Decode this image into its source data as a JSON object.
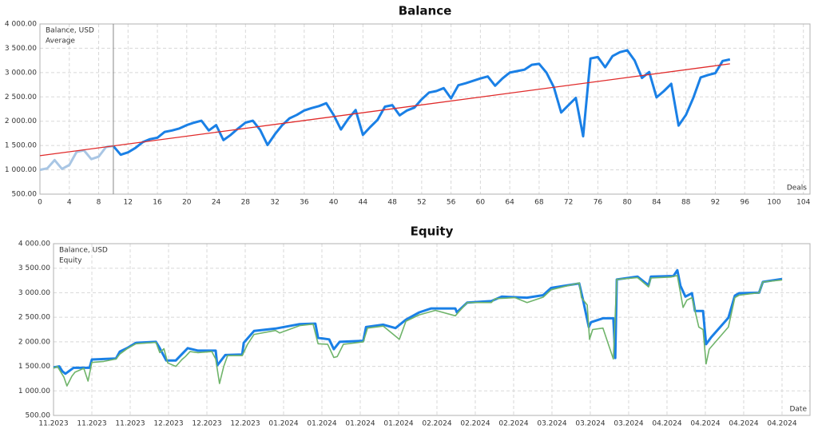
{
  "chart_data": [
    {
      "type": "line",
      "title": "Balance",
      "xlabel": "Deals",
      "xlim": [
        0,
        104.9
      ],
      "xticks": [
        0,
        4,
        8,
        12,
        16,
        20,
        24,
        28,
        32,
        36,
        40,
        44,
        48,
        52,
        56,
        60,
        64,
        68,
        72,
        76,
        80,
        84,
        88,
        92,
        96,
        100,
        104
      ],
      "ylim": [
        500,
        4000
      ],
      "yticks": [
        {
          "value": 500,
          "label": "500.00"
        },
        {
          "value": 1000,
          "label": "1 000.00"
        },
        {
          "value": 1500,
          "label": "1 500.00"
        },
        {
          "value": 2000,
          "label": "2 000.00"
        },
        {
          "value": 2500,
          "label": "2 500.00"
        },
        {
          "value": 3000,
          "label": "3 000.00"
        },
        {
          "value": 3500,
          "label": "3 500.00"
        },
        {
          "value": 4000,
          "label": "4 000.00"
        }
      ],
      "grid": true,
      "legend": "upper left",
      "cursor_x": 10,
      "before_cursor_color": "#a9c6e4",
      "series": [
        {
          "name": "Balance, USD",
          "color": "#1a80e6",
          "x": [
            0,
            1,
            2,
            3,
            4,
            5,
            6,
            7,
            8,
            9,
            10,
            11,
            12,
            13,
            14,
            15,
            16,
            17,
            18,
            19,
            20,
            21,
            22,
            23,
            24,
            25,
            26,
            27,
            28,
            29,
            30,
            31,
            32,
            33,
            34,
            35,
            36,
            37,
            38,
            39,
            40,
            41,
            42,
            43,
            44,
            45,
            46,
            47,
            48,
            49,
            50,
            51,
            52,
            53,
            54,
            55,
            56,
            57,
            58,
            59,
            60,
            61,
            62,
            63,
            64,
            65,
            66,
            67,
            68,
            69,
            70,
            71,
            72,
            73,
            74,
            75,
            76,
            77,
            78,
            79,
            80,
            81,
            82,
            83,
            84,
            85,
            86,
            87,
            88,
            89,
            90,
            91,
            92,
            93,
            94
          ],
          "values": [
            1000,
            1030,
            1200,
            1020,
            1100,
            1370,
            1400,
            1220,
            1270,
            1470,
            1490,
            1310,
            1360,
            1450,
            1570,
            1630,
            1660,
            1780,
            1810,
            1850,
            1920,
            1970,
            2010,
            1810,
            1920,
            1610,
            1720,
            1850,
            1970,
            2010,
            1820,
            1510,
            1730,
            1920,
            2060,
            2130,
            2220,
            2270,
            2310,
            2370,
            2130,
            1830,
            2050,
            2230,
            1720,
            1880,
            2030,
            2300,
            2330,
            2120,
            2220,
            2280,
            2450,
            2590,
            2620,
            2680,
            2470,
            2740,
            2780,
            2830,
            2880,
            2920,
            2730,
            2880,
            3000,
            3030,
            3060,
            3160,
            3180,
            3000,
            2700,
            2180,
            2330,
            2480,
            1690,
            3290,
            3320,
            3110,
            3340,
            3420,
            3460,
            3250,
            2890,
            3010,
            2490,
            2620,
            2770,
            1910,
            2130,
            2480,
            2900,
            2950,
            2990,
            3240,
            3270
          ],
          "width": 3
        },
        {
          "name": "Average",
          "color": "#e02a2a",
          "x": [
            0,
            94
          ],
          "values": [
            1290,
            3180
          ],
          "width": 1.3
        }
      ]
    },
    {
      "type": "line",
      "title": "Equity",
      "xlabel": "Date",
      "xlim": [
        0,
        19.73
      ],
      "xticks": [
        {
          "value": 0,
          "label": "11.2023"
        },
        {
          "value": 1,
          "label": "11.2023"
        },
        {
          "value": 2,
          "label": "11.2023"
        },
        {
          "value": 3,
          "label": "12.2023"
        },
        {
          "value": 4,
          "label": "12.2023"
        },
        {
          "value": 5,
          "label": "12.2023"
        },
        {
          "value": 6,
          "label": "01.2024"
        },
        {
          "value": 7,
          "label": "01.2024"
        },
        {
          "value": 8,
          "label": "01.2024"
        },
        {
          "value": 9,
          "label": "01.2024"
        },
        {
          "value": 10,
          "label": "02.2024"
        },
        {
          "value": 11,
          "label": "02.2024"
        },
        {
          "value": 12,
          "label": "02.2024"
        },
        {
          "value": 13,
          "label": "03.2024"
        },
        {
          "value": 14,
          "label": "03.2024"
        },
        {
          "value": 15,
          "label": "03.2024"
        },
        {
          "value": 16,
          "label": "04.2024"
        },
        {
          "value": 17,
          "label": "04.2024"
        },
        {
          "value": 18,
          "label": "04.2024"
        },
        {
          "value": 19,
          "label": "04.2024"
        }
      ],
      "ylim": [
        500,
        4000
      ],
      "yticks": [
        {
          "value": 500,
          "label": "500.00"
        },
        {
          "value": 1000,
          "label": "1 000.00"
        },
        {
          "value": 1500,
          "label": "1 500.00"
        },
        {
          "value": 2000,
          "label": "2 000.00"
        },
        {
          "value": 2500,
          "label": "2 500.00"
        },
        {
          "value": 3000,
          "label": "3 000.00"
        },
        {
          "value": 3500,
          "label": "3 500.00"
        },
        {
          "value": 4000,
          "label": "4 000.00"
        }
      ],
      "grid": true,
      "legend": "upper left",
      "series": [
        {
          "name": "Balance, USD",
          "color": "#1a80e6",
          "width": 3,
          "x": [
            0,
            0.15,
            0.23,
            0.31,
            0.52,
            0.94,
            1,
            1.31,
            1.63,
            1.73,
            1.94,
            2.15,
            2.67,
            2.77,
            2.94,
            3.19,
            3.35,
            3.5,
            3.77,
            4.23,
            4.27,
            4.48,
            4.92,
            4.96,
            5.23,
            5.79,
            6.42,
            6.83,
            6.9,
            7.19,
            7.31,
            7.46,
            8.08,
            8.15,
            8.6,
            8.92,
            9.19,
            9.54,
            9.85,
            10.48,
            10.52,
            10.79,
            11.42,
            11.69,
            12.35,
            12.77,
            12.98,
            13.71,
            13.81,
            13.96,
            14.02,
            14.33,
            14.6,
            14.65,
            14.69,
            15.23,
            15.52,
            15.58,
            16.17,
            16.27,
            16.35,
            16.48,
            16.65,
            16.73,
            16.94,
            17.02,
            17.15,
            17.6,
            17.77,
            17.88,
            18.4,
            18.5,
            19
          ],
          "values": [
            1480,
            1500,
            1400,
            1350,
            1470,
            1470,
            1640,
            1650,
            1660,
            1800,
            1880,
            1980,
            2000,
            1870,
            1620,
            1620,
            1750,
            1870,
            1820,
            1820,
            1520,
            1730,
            1740,
            1980,
            2220,
            2270,
            2360,
            2370,
            2080,
            2050,
            1850,
            2000,
            2020,
            2300,
            2350,
            2280,
            2450,
            2600,
            2680,
            2680,
            2600,
            2800,
            2830,
            2920,
            2900,
            2950,
            3100,
            3190,
            2850,
            2300,
            2400,
            2480,
            2480,
            1670,
            3270,
            3330,
            3150,
            3330,
            3340,
            3460,
            3140,
            2920,
            2990,
            2630,
            2630,
            1950,
            2090,
            2490,
            2940,
            2990,
            3000,
            3220,
            3280
          ]
        },
        {
          "name": "Equity",
          "color": "#6fb46a",
          "width": 1.6,
          "x": [
            0,
            0.1,
            0.27,
            0.35,
            0.48,
            0.56,
            0.79,
            0.9,
            1,
            1.31,
            1.63,
            1.73,
            1.94,
            2.15,
            2.67,
            2.77,
            2.88,
            2.98,
            3.19,
            3.35,
            3.44,
            3.56,
            3.77,
            4.13,
            4.23,
            4.33,
            4.44,
            4.54,
            4.92,
            5.06,
            5.23,
            5.79,
            5.9,
            6.42,
            6.77,
            6.9,
            7.15,
            7.31,
            7.4,
            7.56,
            8.08,
            8.19,
            8.6,
            9.02,
            9.19,
            9.54,
            9.96,
            10.48,
            10.58,
            10.79,
            11.42,
            11.52,
            12.04,
            12.35,
            12.77,
            12.98,
            13.71,
            13.77,
            13.92,
            13.98,
            14.06,
            14.33,
            14.6,
            14.69,
            15.23,
            15.52,
            15.58,
            16.1,
            16.27,
            16.42,
            16.52,
            16.65,
            16.83,
            16.94,
            17.02,
            17.1,
            17.6,
            17.77,
            17.88,
            18.4,
            18.5,
            19
          ],
          "values": [
            1460,
            1500,
            1280,
            1100,
            1300,
            1380,
            1460,
            1200,
            1580,
            1600,
            1650,
            1750,
            1870,
            1960,
            1990,
            1780,
            1860,
            1570,
            1500,
            1640,
            1700,
            1800,
            1780,
            1800,
            1650,
            1150,
            1500,
            1720,
            1720,
            1950,
            2150,
            2230,
            2180,
            2330,
            2360,
            1960,
            1950,
            1680,
            1700,
            1950,
            2000,
            2280,
            2320,
            2050,
            2420,
            2550,
            2640,
            2530,
            2620,
            2800,
            2800,
            2880,
            2900,
            2800,
            2910,
            3060,
            3200,
            2900,
            2750,
            2050,
            2250,
            2280,
            1650,
            3270,
            3310,
            3120,
            3300,
            3320,
            3350,
            2700,
            2850,
            2900,
            2300,
            2250,
            1550,
            1850,
            2300,
            2900,
            2950,
            3000,
            3220,
            3260
          ]
        }
      ]
    }
  ]
}
